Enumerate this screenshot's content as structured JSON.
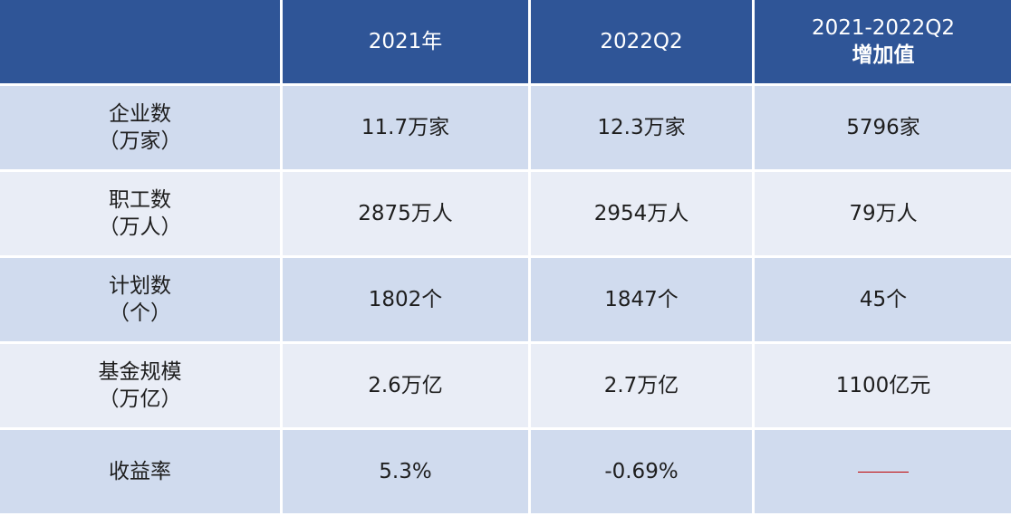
{
  "table": {
    "columns": [
      [
        "2021年"
      ],
      [
        "2022Q2"
      ],
      [
        "2021-2022Q2",
        "增加值"
      ]
    ],
    "rows": [
      {
        "label": [
          "企业数",
          "（万家）"
        ],
        "cells": [
          "11.7万家",
          "12.3万家",
          "5796家"
        ]
      },
      {
        "label": [
          "职工数",
          "（万人）"
        ],
        "cells": [
          "2875万人",
          "2954万人",
          "79万人"
        ]
      },
      {
        "label": [
          "计划数",
          "（个）"
        ],
        "cells": [
          "1802个",
          "1847个",
          "45个"
        ]
      },
      {
        "label": [
          "基金规模",
          "（万亿）"
        ],
        "cells": [
          "2.6万亿",
          "2.7万亿",
          "1100亿元"
        ]
      },
      {
        "label": [
          "收益率"
        ],
        "cells": [
          "5.3%",
          "-0.69%"
        ]
      }
    ]
  }
}
